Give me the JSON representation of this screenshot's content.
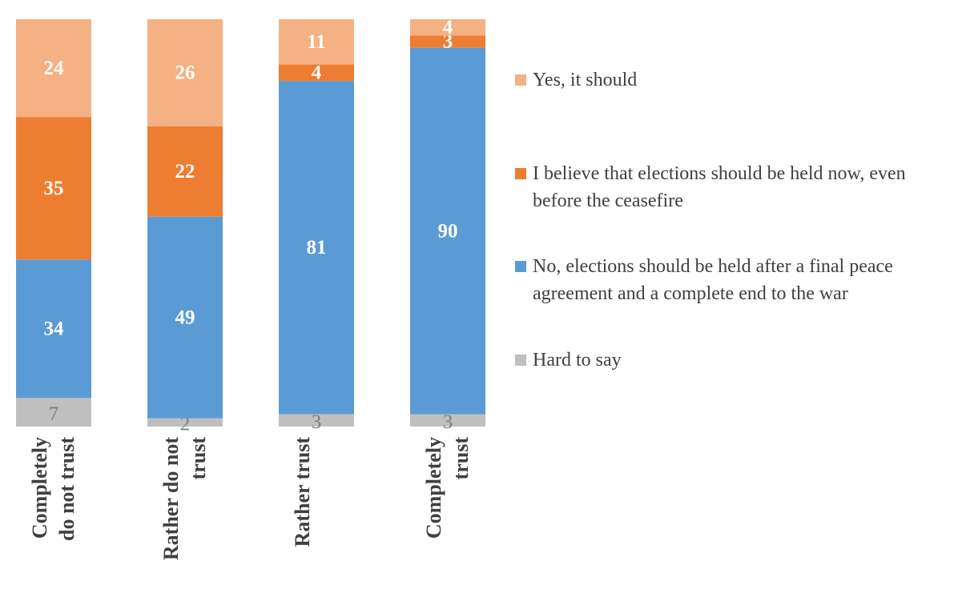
{
  "chart_data": {
    "type": "bar",
    "stack": "percent",
    "categories": [
      "Completely do not trust",
      "Rather do not trust",
      "Rather trust",
      "Completely trust"
    ],
    "series": [
      {
        "name": "Hard to say",
        "color": "#bfbfbf",
        "values": [
          7,
          2,
          3,
          3
        ]
      },
      {
        "name": "No, elections should be held after a final peace agreement and a complete end to the war",
        "color": "#5b9bd5",
        "values": [
          34,
          49,
          81,
          90
        ]
      },
      {
        "name": "I believe that elections should be held now, even before the ceasefire",
        "color": "#ed7d31",
        "values": [
          35,
          22,
          4,
          3
        ]
      },
      {
        "name": "Yes, it should",
        "color": "#f4b183",
        "values": [
          24,
          26,
          11,
          4
        ]
      }
    ],
    "legend": "right"
  }
}
